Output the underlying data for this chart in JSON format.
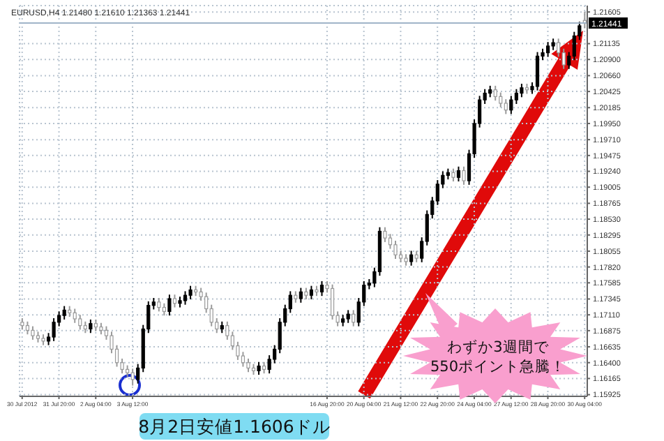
{
  "chart_data": {
    "type": "candlestick",
    "title": "EURUSD,H4 1.21480 1.21610 1.21363 1.21441",
    "categories": [
      "30 Jul 2012",
      null,
      null,
      null,
      null,
      null,
      null,
      "31 Jul 20:00",
      null,
      null,
      null,
      null,
      null,
      null,
      "2 Aug 04:00",
      null,
      null,
      null,
      null,
      null,
      null,
      "3 Aug 12:00",
      null,
      null,
      null,
      null,
      null,
      null,
      null,
      null,
      null,
      null,
      null,
      null,
      null,
      null,
      null,
      null,
      null,
      null,
      null,
      null,
      null,
      null,
      null,
      null,
      null,
      null,
      null,
      null,
      null,
      null,
      null,
      null,
      null,
      null,
      null,
      null,
      "16 Aug 20:00",
      null,
      null,
      null,
      null,
      null,
      null,
      "20 Aug 04:00",
      null,
      null,
      null,
      null,
      null,
      null,
      "21 Aug 12:00",
      null,
      null,
      null,
      null,
      null,
      null,
      "22 Aug 20:00",
      null,
      null,
      null,
      null,
      null,
      null,
      "24 Aug 04:00",
      null,
      null,
      null,
      null,
      null,
      null,
      "27 Aug 12:00",
      null,
      null,
      null,
      null,
      null,
      null,
      "28 Aug 20:00",
      null,
      null,
      null,
      null,
      null,
      null,
      "30 Aug 04:00"
    ],
    "ohlc": [
      [
        1.17,
        1.1706,
        1.1689,
        1.1695
      ],
      [
        1.1695,
        1.1701,
        1.1682,
        1.1688
      ],
      [
        1.1688,
        1.1694,
        1.1674,
        1.168
      ],
      [
        1.168,
        1.1686,
        1.167,
        1.1676
      ],
      [
        1.1676,
        1.1682,
        1.1666,
        1.1672
      ],
      [
        1.1672,
        1.1684,
        1.1666,
        1.1678
      ],
      [
        1.1678,
        1.1706,
        1.1672,
        1.17
      ],
      [
        1.17,
        1.1716,
        1.1694,
        1.171
      ],
      [
        1.171,
        1.1724,
        1.1704,
        1.1718
      ],
      [
        1.1718,
        1.1724,
        1.1708,
        1.1714
      ],
      [
        1.1714,
        1.172,
        1.1699,
        1.1705
      ],
      [
        1.1705,
        1.1711,
        1.1689,
        1.1695
      ],
      [
        1.1695,
        1.1701,
        1.1684,
        1.169
      ],
      [
        1.169,
        1.1704,
        1.1684,
        1.1698
      ],
      [
        1.1698,
        1.1704,
        1.1687,
        1.1693
      ],
      [
        1.1693,
        1.1699,
        1.1682,
        1.1688
      ],
      [
        1.1688,
        1.1694,
        1.1674,
        1.168
      ],
      [
        1.168,
        1.1686,
        1.1654,
        1.166
      ],
      [
        1.166,
        1.1666,
        1.1634,
        1.164
      ],
      [
        1.164,
        1.1646,
        1.1624,
        1.163
      ],
      [
        1.163,
        1.1636,
        1.1619,
        1.1625
      ],
      [
        1.1625,
        1.1631,
        1.1606,
        1.1615
      ],
      [
        1.1615,
        1.1638,
        1.1609,
        1.1632
      ],
      [
        1.1632,
        1.1696,
        1.1626,
        1.169
      ],
      [
        1.169,
        1.1731,
        1.1684,
        1.1725
      ],
      [
        1.1725,
        1.1736,
        1.1719,
        1.173
      ],
      [
        1.173,
        1.1736,
        1.1716,
        1.1722
      ],
      [
        1.1722,
        1.1728,
        1.171,
        1.1716
      ],
      [
        1.1716,
        1.1741,
        1.171,
        1.1735
      ],
      [
        1.1735,
        1.1741,
        1.1722,
        1.1728
      ],
      [
        1.1728,
        1.1738,
        1.1722,
        1.1732
      ],
      [
        1.1732,
        1.1746,
        1.1726,
        1.174
      ],
      [
        1.174,
        1.1754,
        1.1734,
        1.1748
      ],
      [
        1.1748,
        1.1754,
        1.1739,
        1.1745
      ],
      [
        1.1745,
        1.1751,
        1.1732,
        1.1738
      ],
      [
        1.1738,
        1.1744,
        1.1714,
        1.172
      ],
      [
        1.172,
        1.1726,
        1.1694,
        1.17
      ],
      [
        1.17,
        1.1706,
        1.1684,
        1.169
      ],
      [
        1.169,
        1.1701,
        1.1684,
        1.1695
      ],
      [
        1.1695,
        1.1701,
        1.1674,
        1.168
      ],
      [
        1.168,
        1.1686,
        1.1659,
        1.1665
      ],
      [
        1.1665,
        1.1671,
        1.1644,
        1.165
      ],
      [
        1.165,
        1.1656,
        1.1634,
        1.164
      ],
      [
        1.164,
        1.1646,
        1.1626,
        1.1632
      ],
      [
        1.1632,
        1.1638,
        1.1622,
        1.1628
      ],
      [
        1.1628,
        1.1641,
        1.1622,
        1.1635
      ],
      [
        1.1635,
        1.1641,
        1.1624,
        1.163
      ],
      [
        1.163,
        1.1651,
        1.1624,
        1.1645
      ],
      [
        1.1645,
        1.1666,
        1.1639,
        1.166
      ],
      [
        1.166,
        1.1706,
        1.1654,
        1.17
      ],
      [
        1.17,
        1.1726,
        1.1694,
        1.172
      ],
      [
        1.172,
        1.1746,
        1.1714,
        1.174
      ],
      [
        1.174,
        1.1746,
        1.1729,
        1.1735
      ],
      [
        1.1735,
        1.1751,
        1.1729,
        1.1745
      ],
      [
        1.1745,
        1.1751,
        1.1734,
        1.174
      ],
      [
        1.174,
        1.1754,
        1.1734,
        1.1748
      ],
      [
        1.1748,
        1.1754,
        1.1739,
        1.1745
      ],
      [
        1.1745,
        1.1761,
        1.1739,
        1.1755
      ],
      [
        1.1755,
        1.1761,
        1.1744,
        1.175
      ],
      [
        1.175,
        1.1756,
        1.1704,
        1.171
      ],
      [
        1.171,
        1.1716,
        1.1694,
        1.17
      ],
      [
        1.17,
        1.1711,
        1.1694,
        1.1705
      ],
      [
        1.1705,
        1.1718,
        1.1699,
        1.1712
      ],
      [
        1.1712,
        1.1718,
        1.1694,
        1.17
      ],
      [
        1.17,
        1.1736,
        1.1694,
        1.173
      ],
      [
        1.173,
        1.1761,
        1.1724,
        1.1755
      ],
      [
        1.1755,
        1.1764,
        1.1749,
        1.1758
      ],
      [
        1.1758,
        1.1781,
        1.1752,
        1.1775
      ],
      [
        1.1775,
        1.1841,
        1.1769,
        1.1835
      ],
      [
        1.1835,
        1.1841,
        1.1819,
        1.1825
      ],
      [
        1.1825,
        1.1831,
        1.1809,
        1.1815
      ],
      [
        1.1815,
        1.1821,
        1.1794,
        1.18
      ],
      [
        1.18,
        1.1806,
        1.1789,
        1.1795
      ],
      [
        1.1795,
        1.1801,
        1.1784,
        1.179
      ],
      [
        1.179,
        1.1806,
        1.1784,
        1.18
      ],
      [
        1.18,
        1.1806,
        1.1789,
        1.1795
      ],
      [
        1.1795,
        1.1826,
        1.1789,
        1.182
      ],
      [
        1.182,
        1.1866,
        1.1814,
        1.186
      ],
      [
        1.186,
        1.1886,
        1.1854,
        1.188
      ],
      [
        1.188,
        1.1911,
        1.1874,
        1.1905
      ],
      [
        1.1905,
        1.1924,
        1.1899,
        1.1918
      ],
      [
        1.1918,
        1.1928,
        1.1912,
        1.1922
      ],
      [
        1.1922,
        1.1928,
        1.1909,
        1.1915
      ],
      [
        1.1915,
        1.1931,
        1.1909,
        1.1925
      ],
      [
        1.1925,
        1.1931,
        1.1904,
        1.191
      ],
      [
        1.191,
        1.1956,
        1.1904,
        1.195
      ],
      [
        1.195,
        1.2001,
        1.1944,
        1.1995
      ],
      [
        1.1995,
        1.2036,
        1.1989,
        1.203
      ],
      [
        1.203,
        1.2046,
        1.2024,
        1.204
      ],
      [
        1.204,
        1.2051,
        1.2034,
        1.2045
      ],
      [
        1.2045,
        1.2051,
        1.2029,
        1.2035
      ],
      [
        1.2035,
        1.2041,
        1.2019,
        1.2025
      ],
      [
        1.2025,
        1.2031,
        1.2009,
        1.2015
      ],
      [
        1.2015,
        1.2036,
        1.2009,
        1.203
      ],
      [
        1.203,
        1.2046,
        1.2024,
        1.204
      ],
      [
        1.204,
        1.2054,
        1.2034,
        1.2048
      ],
      [
        1.2048,
        1.2054,
        1.2039,
        1.2045
      ],
      [
        1.2045,
        1.2056,
        1.2039,
        1.205
      ],
      [
        1.205,
        1.2101,
        1.2044,
        1.2095
      ],
      [
        1.2095,
        1.2106,
        1.2089,
        1.21
      ],
      [
        1.21,
        1.2116,
        1.2094,
        1.211
      ],
      [
        1.211,
        1.2121,
        1.2104,
        1.2115
      ],
      [
        1.2115,
        1.2121,
        1.2094,
        1.21
      ],
      [
        1.21,
        1.2106,
        1.2076,
        1.2082
      ],
      [
        1.2082,
        1.2101,
        1.2076,
        1.2095
      ],
      [
        1.2095,
        1.2131,
        1.2089,
        1.2125
      ],
      [
        1.2125,
        1.2146,
        1.2119,
        1.214
      ],
      [
        1.2148,
        1.2161,
        1.21363,
        1.21441
      ]
    ],
    "ylim": [
      1.159,
      1.217
    ],
    "yticks": [
      {
        "value": 1.15925,
        "label": "1.15925"
      },
      {
        "value": 1.16165,
        "label": "1.16165"
      },
      {
        "value": 1.164,
        "label": "1.16400"
      },
      {
        "value": 1.16635,
        "label": "1.16635"
      },
      {
        "value": 1.16875,
        "label": "1.16875"
      },
      {
        "value": 1.1711,
        "label": "1.17110"
      },
      {
        "value": 1.17345,
        "label": "1.17345"
      },
      {
        "value": 1.17585,
        "label": "1.17585"
      },
      {
        "value": 1.1782,
        "label": "1.17820"
      },
      {
        "value": 1.18055,
        "label": "1.18055"
      },
      {
        "value": 1.18295,
        "label": "1.18295"
      },
      {
        "value": 1.1853,
        "label": "1.18530"
      },
      {
        "value": 1.18765,
        "label": "1.18765"
      },
      {
        "value": 1.19005,
        "label": "1.19005"
      },
      {
        "value": 1.1924,
        "label": "1.19240"
      },
      {
        "value": 1.19475,
        "label": "1.19475"
      },
      {
        "value": 1.1971,
        "label": "1.19710"
      },
      {
        "value": 1.1995,
        "label": "1.19950"
      },
      {
        "value": 1.20185,
        "label": "1.20185"
      },
      {
        "value": 1.20425,
        "label": "1.20425"
      },
      {
        "value": 1.2066,
        "label": "1.20660"
      },
      {
        "value": 1.209,
        "label": "1.20900"
      },
      {
        "value": 1.21135,
        "label": "1.21135"
      },
      {
        "value": 1.21605,
        "label": "1.21605"
      }
    ],
    "ref_lines": [
      {
        "axis": "y",
        "value": 1.21441,
        "label": "1.21441",
        "color": "#a0b4c8"
      }
    ],
    "grid": true,
    "annotations": [
      "8月2日安値1.1606ドル",
      "わずか3週間で\n550ポイント急騰！"
    ]
  }
}
